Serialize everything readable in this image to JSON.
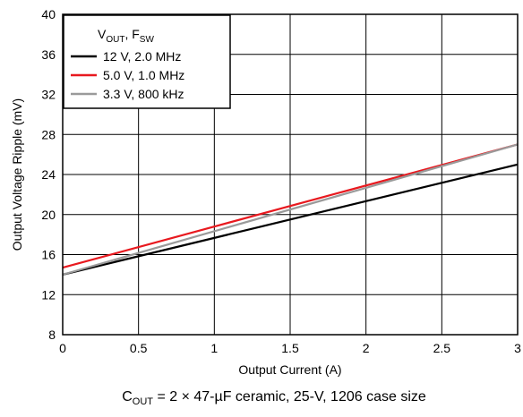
{
  "chart_data": {
    "type": "line",
    "xlabel": "Output Current (A)",
    "ylabel": "Output Voltage Ripple (mV)",
    "xlim": [
      0,
      3
    ],
    "ylim": [
      8,
      40
    ],
    "x_ticks": [
      "0",
      "0.5",
      "1",
      "1.5",
      "2",
      "2.5",
      "3"
    ],
    "y_ticks": [
      "8",
      "12",
      "16",
      "20",
      "24",
      "28",
      "32",
      "36",
      "40"
    ],
    "grid": true,
    "legend_position": "top-left",
    "legend_title": {
      "main1": "V",
      "sub1": "OUT",
      "sep": ", F",
      "sub2": "SW"
    },
    "caption": {
      "pre": "C",
      "sub": "OUT",
      "post": " = 2 × 47-µF ceramic, 25-V, 1206 case size"
    },
    "series": [
      {
        "name": "12 V, 2.0 MHz",
        "color": "#000000",
        "x": [
          0,
          3
        ],
        "y": [
          14.0,
          25.0
        ]
      },
      {
        "name": "5.0 V, 1.0 MHz",
        "color": "#e8191f",
        "x": [
          0,
          3
        ],
        "y": [
          14.7,
          27.0
        ]
      },
      {
        "name": "3.3 V, 800 kHz",
        "color": "#9a9a9a",
        "x": [
          0,
          3
        ],
        "y": [
          14.0,
          27.0
        ]
      }
    ]
  }
}
